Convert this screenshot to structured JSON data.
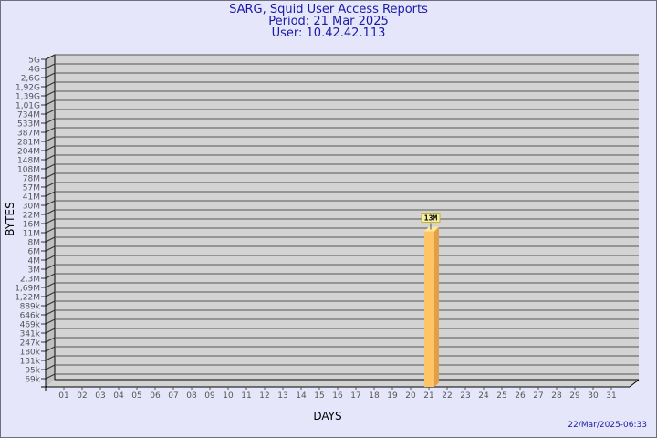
{
  "header": {
    "title": "SARG, Squid User Access Reports",
    "period": "Period: 21 Mar 2025",
    "user": "User: 10.42.42.113"
  },
  "footer": {
    "generated": "22/Mar/2025-06:33"
  },
  "chart_data": {
    "type": "bar",
    "title": "SARG, Squid User Access Reports",
    "xlabel": "DAYS",
    "ylabel": "BYTES",
    "y_scale": "log",
    "y_ticks": [
      "5G",
      "4G",
      "2,6G",
      "1,92G",
      "1,39G",
      "1,01G",
      "734M",
      "533M",
      "387M",
      "281M",
      "204M",
      "148M",
      "108M",
      "78M",
      "57M",
      "41M",
      "30M",
      "22M",
      "16M",
      "11M",
      "8M",
      "6M",
      "4M",
      "3M",
      "2,3M",
      "1,69M",
      "1,22M",
      "889k",
      "646k",
      "469k",
      "341k",
      "247k",
      "180k",
      "131k",
      "95k",
      "69k"
    ],
    "categories": [
      "01",
      "02",
      "03",
      "04",
      "05",
      "06",
      "07",
      "08",
      "09",
      "10",
      "11",
      "12",
      "13",
      "14",
      "15",
      "16",
      "17",
      "18",
      "19",
      "20",
      "21",
      "22",
      "23",
      "24",
      "25",
      "26",
      "27",
      "28",
      "29",
      "30",
      "31"
    ],
    "values": [
      null,
      null,
      null,
      null,
      null,
      null,
      null,
      null,
      null,
      null,
      null,
      null,
      null,
      null,
      null,
      null,
      null,
      null,
      null,
      null,
      13000000,
      null,
      null,
      null,
      null,
      null,
      null,
      null,
      null,
      null,
      null
    ],
    "data_labels": {
      "21": "13M"
    },
    "grid": true,
    "colors": {
      "bar_front": "#ffc466",
      "bar_side": "#e0a048",
      "bar_top": "#ffe89a",
      "wall": "#d3d3d3",
      "side_wall": "#c0c0c0",
      "label_bg": "#f5f0a0",
      "label_border": "#c8b030",
      "title": "#1a1aa6",
      "background": "#e6e6fa"
    }
  }
}
